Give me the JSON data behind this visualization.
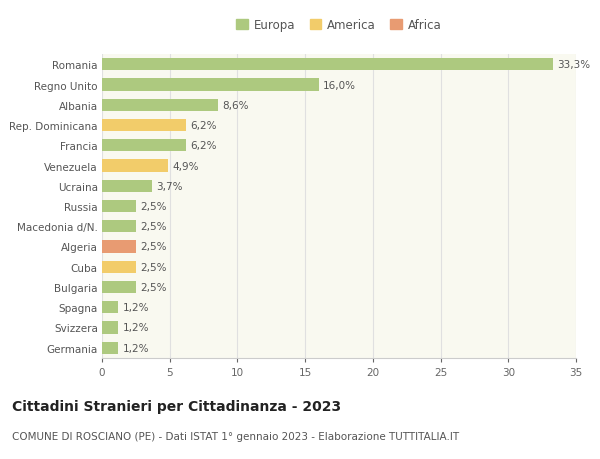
{
  "countries": [
    "Romania",
    "Regno Unito",
    "Albania",
    "Rep. Dominicana",
    "Francia",
    "Venezuela",
    "Ucraina",
    "Russia",
    "Macedonia d/N.",
    "Algeria",
    "Cuba",
    "Bulgaria",
    "Spagna",
    "Svizzera",
    "Germania"
  ],
  "values": [
    33.3,
    16.0,
    8.6,
    6.2,
    6.2,
    4.9,
    3.7,
    2.5,
    2.5,
    2.5,
    2.5,
    2.5,
    1.2,
    1.2,
    1.2
  ],
  "labels": [
    "33,3%",
    "16,0%",
    "8,6%",
    "6,2%",
    "6,2%",
    "4,9%",
    "3,7%",
    "2,5%",
    "2,5%",
    "2,5%",
    "2,5%",
    "2,5%",
    "1,2%",
    "1,2%",
    "1,2%"
  ],
  "continents": [
    "Europa",
    "Europa",
    "Europa",
    "America",
    "Europa",
    "America",
    "Europa",
    "Europa",
    "Europa",
    "Africa",
    "America",
    "Europa",
    "Europa",
    "Europa",
    "Europa"
  ],
  "colors": {
    "Europa": "#adc97f",
    "America": "#f2cc6a",
    "Africa": "#e89b72"
  },
  "legend": [
    "Europa",
    "America",
    "Africa"
  ],
  "legend_colors": [
    "#adc97f",
    "#f2cc6a",
    "#e89b72"
  ],
  "title": "Cittadini Stranieri per Cittadinanza - 2023",
  "subtitle": "COMUNE DI ROSCIANO (PE) - Dati ISTAT 1° gennaio 2023 - Elaborazione TUTTITALIA.IT",
  "xlim": [
    0,
    35
  ],
  "xticks": [
    0,
    5,
    10,
    15,
    20,
    25,
    30,
    35
  ],
  "background_color": "#ffffff",
  "plot_bg_color": "#f9f9f0",
  "grid_color": "#e0e0e0",
  "bar_height": 0.6,
  "label_fontsize": 7.5,
  "tick_fontsize": 7.5,
  "title_fontsize": 10,
  "subtitle_fontsize": 7.5
}
